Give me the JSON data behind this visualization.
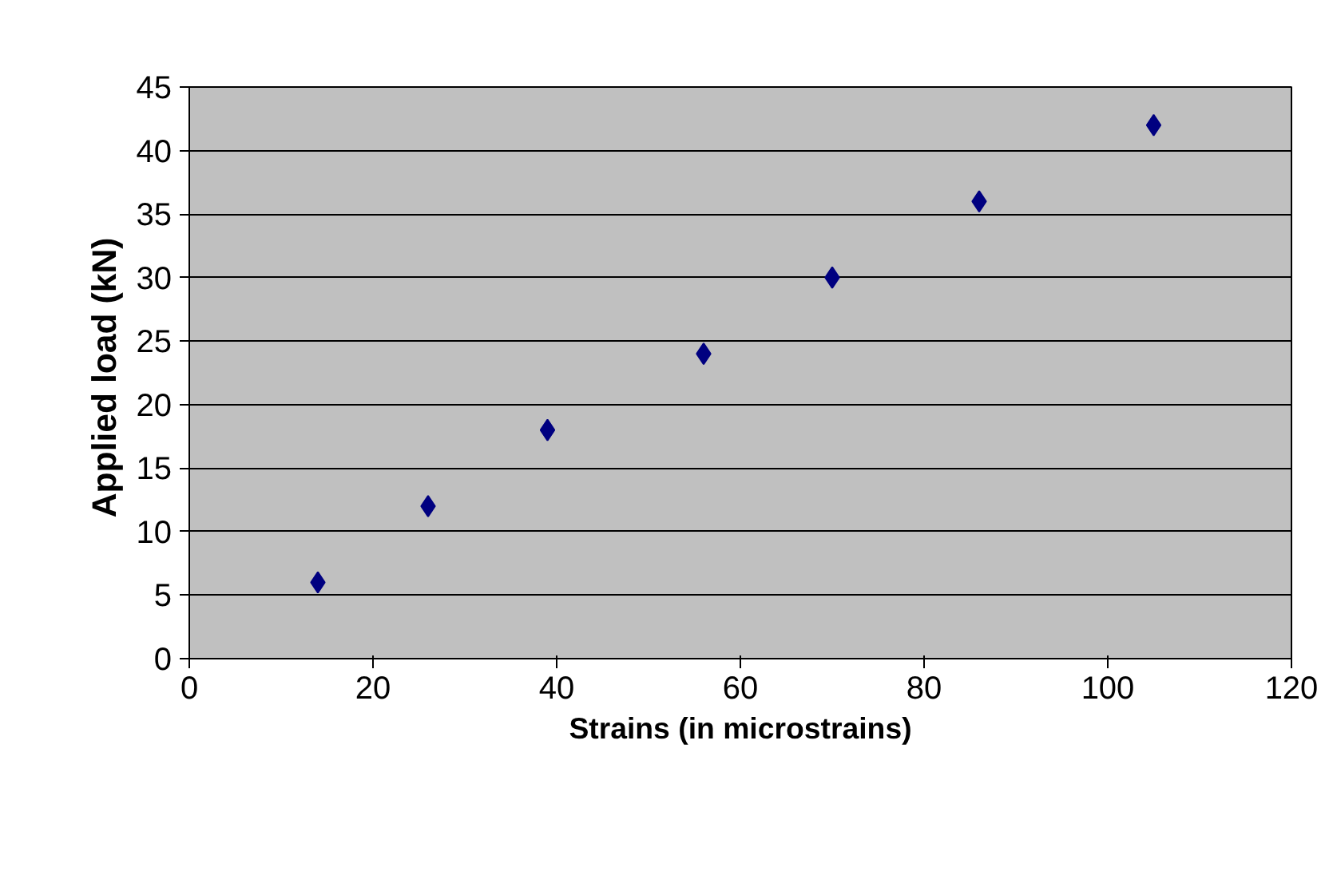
{
  "chart_data": {
    "type": "scatter",
    "xlabel": "Strains (in microstrains)",
    "ylabel": "Applied load  (kN)",
    "x": [
      14,
      26,
      39,
      56,
      70,
      86,
      105
    ],
    "values": [
      6,
      12,
      18,
      24,
      30,
      36,
      42
    ],
    "color": "#000080",
    "marker": "diamond",
    "xlim": [
      0,
      120
    ],
    "xticks": [
      0,
      20,
      40,
      60,
      80,
      100,
      120
    ],
    "ylim": [
      0,
      45
    ],
    "yticks": [
      0,
      5,
      10,
      15,
      20,
      25,
      30,
      35,
      40,
      45
    ],
    "grid": "y"
  }
}
